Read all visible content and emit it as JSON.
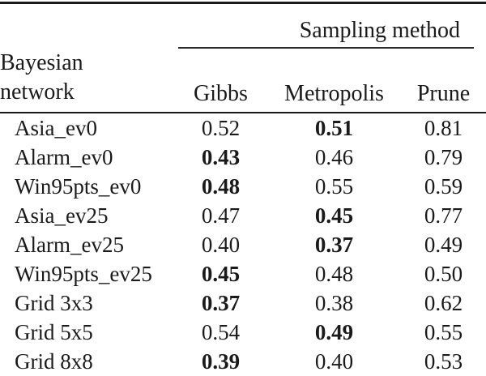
{
  "colors": {
    "background": "#ffffff",
    "text": "#1a1a1a",
    "rule": "#1a1a1a"
  },
  "table": {
    "group_header": "Sampling method",
    "row_header_line1": "Bayesian",
    "row_header_line2": "network",
    "columns": [
      "Gibbs",
      "Metropolis",
      "Prune"
    ],
    "rows": [
      {
        "network": "Asia_ev0",
        "values": [
          {
            "value": "0.52",
            "bold": false
          },
          {
            "value": "0.51",
            "bold": true
          },
          {
            "value": "0.81",
            "bold": false
          }
        ]
      },
      {
        "network": "Alarm_ev0",
        "values": [
          {
            "value": "0.43",
            "bold": true
          },
          {
            "value": "0.46",
            "bold": false
          },
          {
            "value": "0.79",
            "bold": false
          }
        ]
      },
      {
        "network": "Win95pts_ev0",
        "values": [
          {
            "value": "0.48",
            "bold": true
          },
          {
            "value": "0.55",
            "bold": false
          },
          {
            "value": "0.59",
            "bold": false
          }
        ]
      },
      {
        "network": "Asia_ev25",
        "values": [
          {
            "value": "0.47",
            "bold": false
          },
          {
            "value": "0.45",
            "bold": true
          },
          {
            "value": "0.77",
            "bold": false
          }
        ]
      },
      {
        "network": "Alarm_ev25",
        "values": [
          {
            "value": "0.40",
            "bold": false
          },
          {
            "value": "0.37",
            "bold": true
          },
          {
            "value": "0.49",
            "bold": false
          }
        ]
      },
      {
        "network": "Win95pts_ev25",
        "values": [
          {
            "value": "0.45",
            "bold": true
          },
          {
            "value": "0.48",
            "bold": false
          },
          {
            "value": "0.50",
            "bold": false
          }
        ]
      },
      {
        "network": "Grid 3x3",
        "values": [
          {
            "value": "0.37",
            "bold": true
          },
          {
            "value": "0.38",
            "bold": false
          },
          {
            "value": "0.62",
            "bold": false
          }
        ]
      },
      {
        "network": "Grid 5x5",
        "values": [
          {
            "value": "0.54",
            "bold": false
          },
          {
            "value": "0.49",
            "bold": true
          },
          {
            "value": "0.55",
            "bold": false
          }
        ]
      },
      {
        "network": "Grid 8x8",
        "values": [
          {
            "value": "0.39",
            "bold": true
          },
          {
            "value": "0.40",
            "bold": false
          },
          {
            "value": "0.53",
            "bold": false
          }
        ]
      }
    ]
  }
}
